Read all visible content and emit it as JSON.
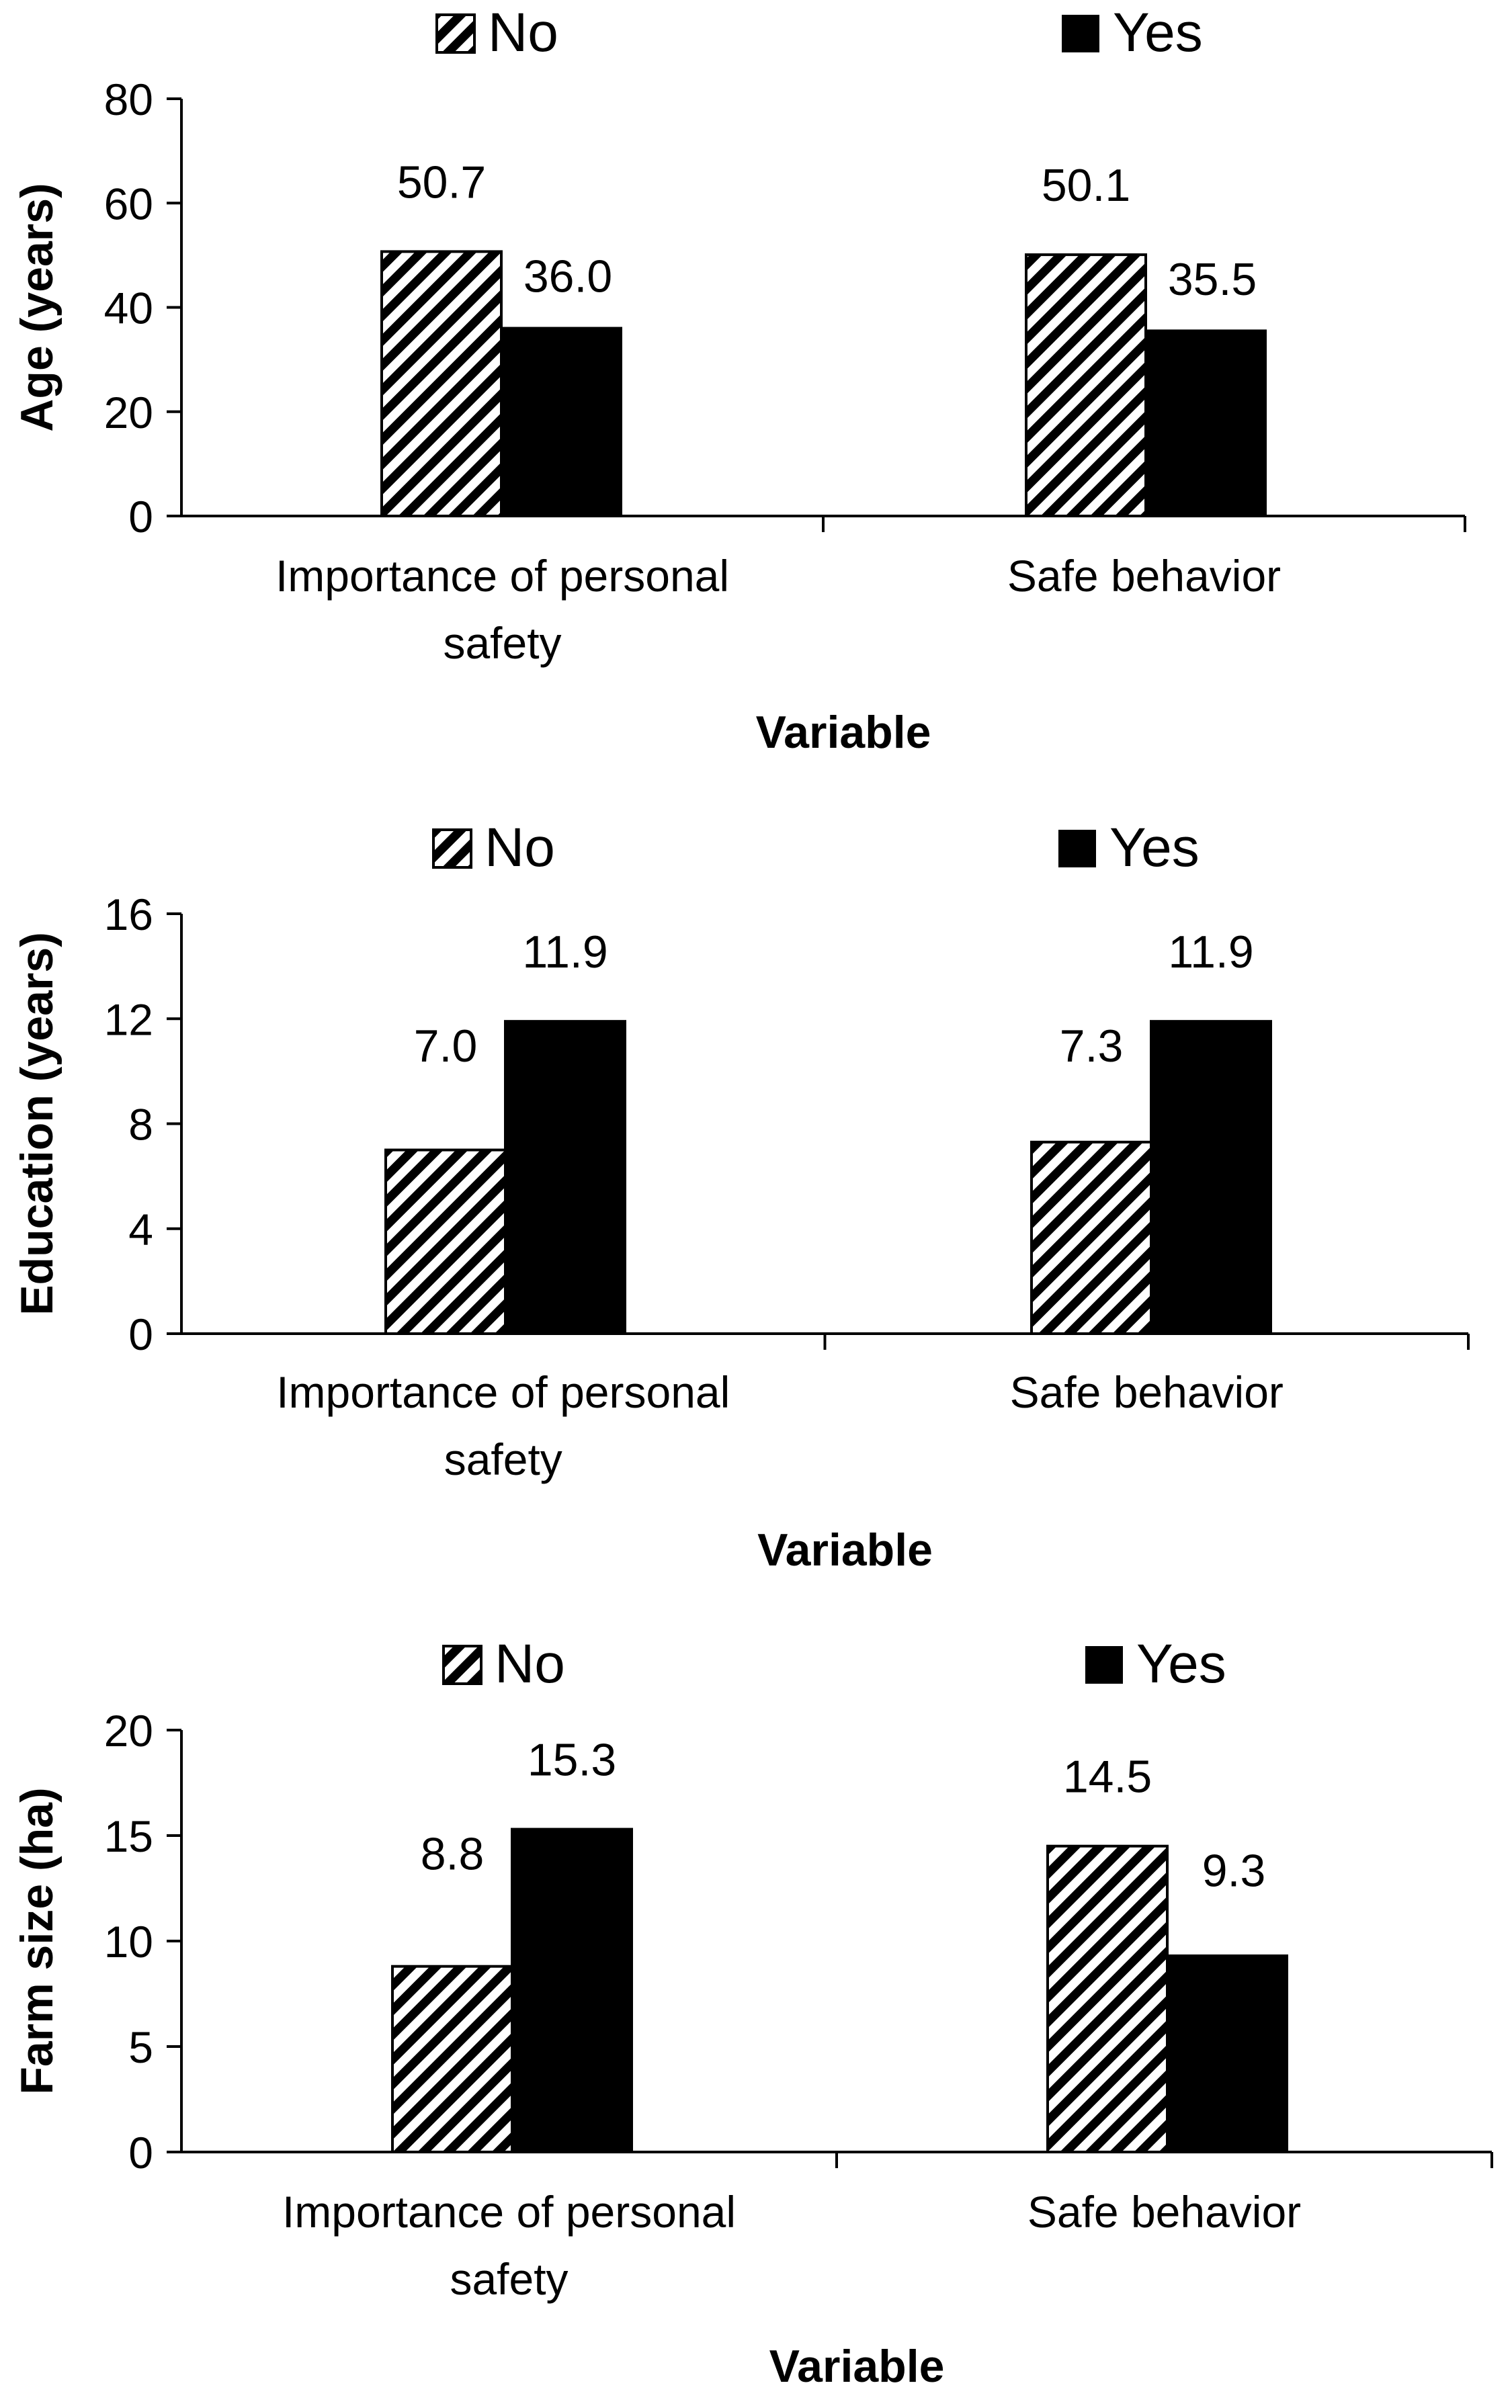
{
  "legend": {
    "no_label": "No",
    "yes_label": "Yes"
  },
  "colors": {
    "yes_fill": "#000000",
    "no_stripe": "#000000",
    "no_bg": "#ffffff",
    "axis": "#000000"
  },
  "chart_data": [
    {
      "type": "bar",
      "title": "",
      "xlabel": "Variable",
      "ylabel": "Age (years)",
      "categories": [
        "Importance of personal safety",
        "Safe behavior"
      ],
      "category_lines": [
        [
          "Importance of personal",
          "safety"
        ],
        [
          "Safe behavior"
        ]
      ],
      "series": [
        {
          "name": "No",
          "values": [
            50.7,
            50.1
          ],
          "labels": [
            "50.7",
            "50.1"
          ]
        },
        {
          "name": "Yes",
          "values": [
            36.0,
            35.5
          ],
          "labels": [
            "36.0",
            "35.5"
          ]
        }
      ],
      "ylim": [
        0,
        80
      ],
      "yticks": [
        0,
        20,
        40,
        60,
        80
      ]
    },
    {
      "type": "bar",
      "title": "",
      "xlabel": "Variable",
      "ylabel": "Education (years)",
      "categories": [
        "Importance of personal safety",
        "Safe behavior"
      ],
      "category_lines": [
        [
          "Importance of personal",
          "safety"
        ],
        [
          "Safe behavior"
        ]
      ],
      "series": [
        {
          "name": "No",
          "values": [
            7.0,
            7.3
          ],
          "labels": [
            "7.0",
            "7.3"
          ]
        },
        {
          "name": "Yes",
          "values": [
            11.9,
            11.9
          ],
          "labels": [
            "11.9",
            "11.9"
          ]
        }
      ],
      "ylim": [
        0,
        16
      ],
      "yticks": [
        0,
        4,
        8,
        12,
        16
      ]
    },
    {
      "type": "bar",
      "title": "",
      "xlabel": "Variable",
      "ylabel": "Farm size (ha)",
      "categories": [
        "Importance of personal safety",
        "Safe behavior"
      ],
      "category_lines": [
        [
          "Importance of personal",
          "safety"
        ],
        [
          "Safe behavior"
        ]
      ],
      "series": [
        {
          "name": "No",
          "values": [
            8.8,
            14.5
          ],
          "labels": [
            "8.8",
            "14.5"
          ]
        },
        {
          "name": "Yes",
          "values": [
            15.3,
            9.3
          ],
          "labels": [
            "15.3",
            "9.3"
          ]
        }
      ],
      "ylim": [
        0,
        20
      ],
      "yticks": [
        0,
        5,
        10,
        15,
        20
      ]
    }
  ]
}
